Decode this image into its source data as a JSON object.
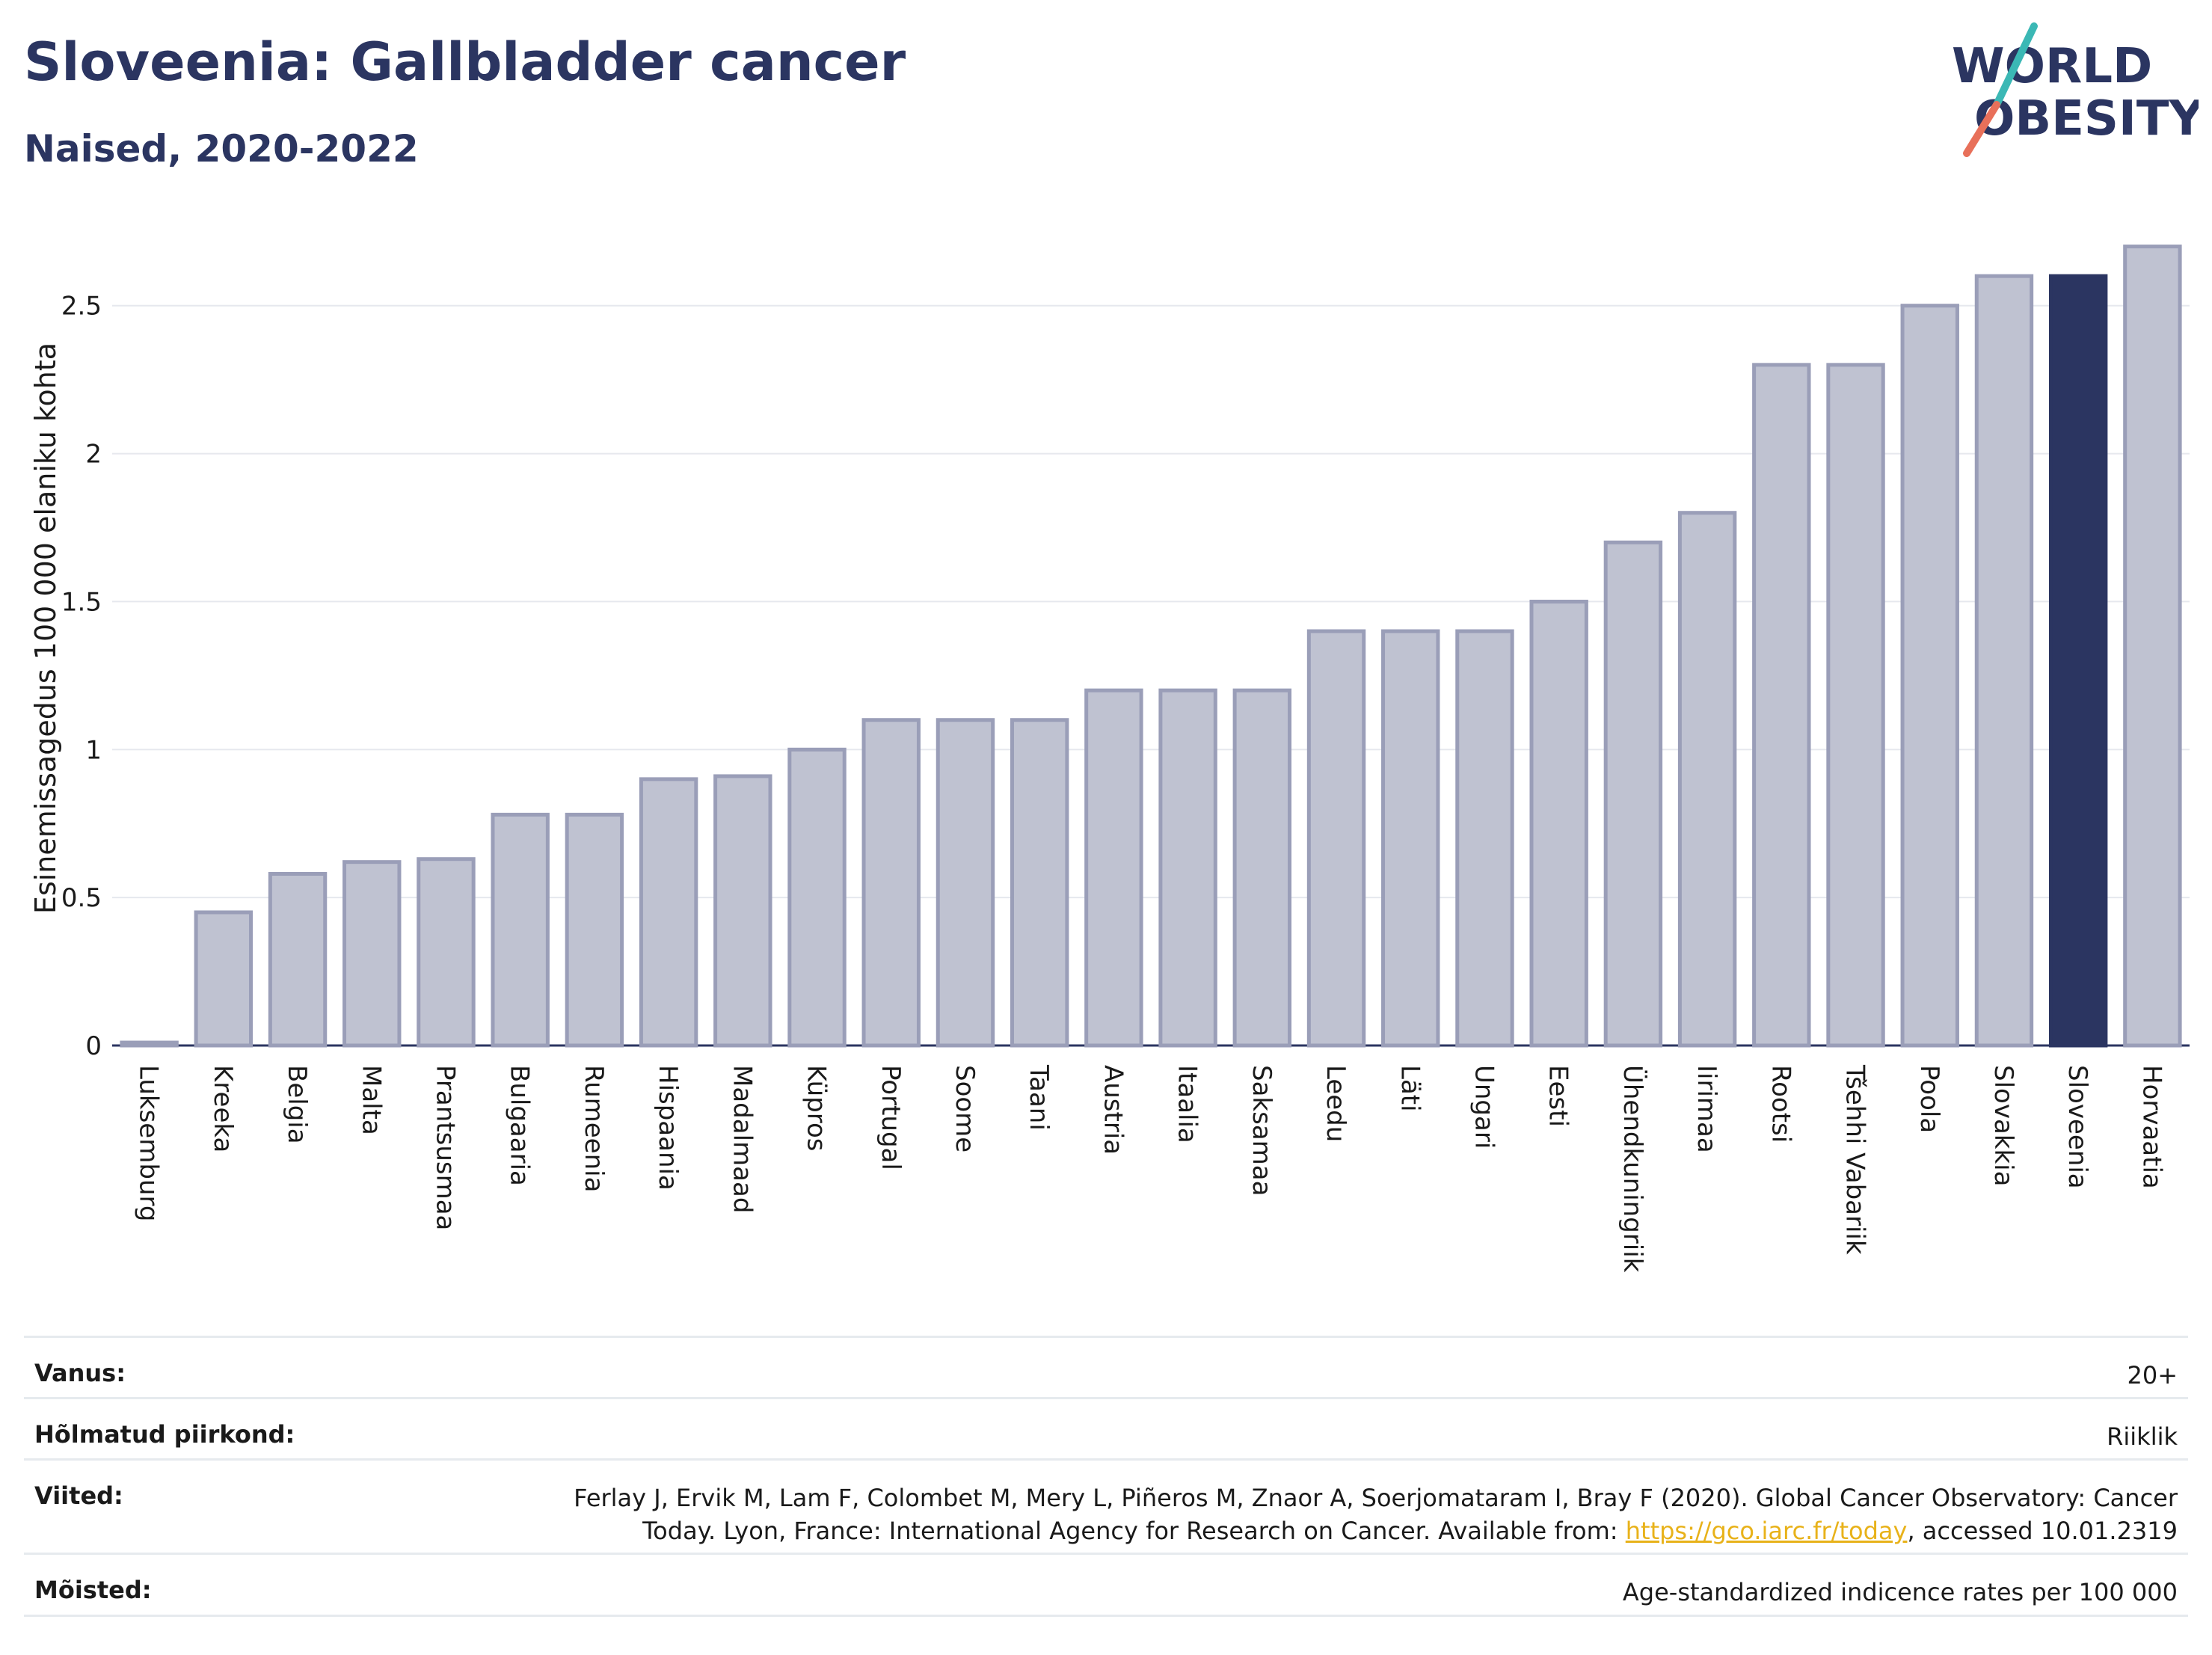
{
  "header": {
    "title": "Sloveenia: Gallbladder cancer",
    "subtitle": "Naised, 2020-2022",
    "logo_line1": "WORLD",
    "logo_line2": "OBESITY"
  },
  "chart_data": {
    "type": "bar",
    "ylabel": "Esinemissagedus 100 000 elaniku kohta",
    "ylim": [
      0,
      2.8
    ],
    "yticks": [
      0,
      0.5,
      1,
      1.5,
      2,
      2.5
    ],
    "ytick_labels": [
      "0",
      "0.5",
      "1",
      "1.5",
      "2",
      "2.5"
    ],
    "grid": true,
    "highlight": "Sloveenia",
    "colors": {
      "default": "#bfc2d1",
      "default_stroke": "#9a9eb8",
      "highlight": "#2b3561"
    },
    "categories": [
      "Luksemburg",
      "Kreeka",
      "Belgia",
      "Malta",
      "Prantsusmaa",
      "Bulgaaria",
      "Rumeenia",
      "Hispaania",
      "Madalmaad",
      "Küpros",
      "Portugal",
      "Soome",
      "Taani",
      "Austria",
      "Itaalia",
      "Saksamaa",
      "Leedu",
      "Läti",
      "Ungari",
      "Eesti",
      "Ühendkuningriik",
      "Iirimaa",
      "Rootsi",
      "Tšehhi Vabariik",
      "Poola",
      "Slovakkia",
      "Sloveenia",
      "Horvaatia"
    ],
    "values": [
      0.01,
      0.45,
      0.58,
      0.62,
      0.63,
      0.78,
      0.78,
      0.9,
      0.91,
      1.0,
      1.1,
      1.1,
      1.1,
      1.2,
      1.2,
      1.2,
      1.4,
      1.4,
      1.4,
      1.5,
      1.7,
      1.8,
      2.3,
      2.3,
      2.5,
      2.6,
      2.6,
      2.7
    ]
  },
  "info": {
    "age_label": "Vanus:",
    "age_value": "20+",
    "region_label": "Hõlmatud piirkond:",
    "region_value": "Riiklik",
    "refs_label": "Viited:",
    "refs_line1": "Ferlay J, Ervik M, Lam F, Colombet M, Mery L, Piñeros M, Znaor A, Soerjomataram I, Bray F (2020). Global Cancer Observatory: Cancer",
    "refs_line2_pre": "Today. Lyon, France: International Agency for Research on Cancer. Available from: ",
    "refs_link": "https://gco.iarc.fr/today",
    "refs_line2_post": ", accessed 10.01.2319",
    "defs_label": "Mõisted:",
    "defs_value": "Age-standardized indicence rates per 100 000"
  }
}
